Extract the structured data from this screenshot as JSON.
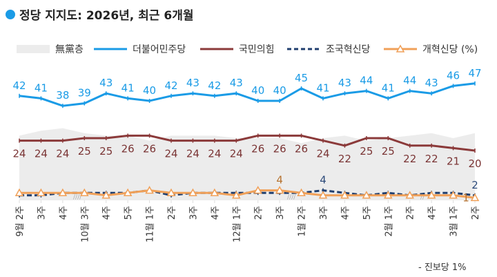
{
  "title": "정당 지지도: 2026년, 최근 6개월",
  "footnote": "- 진보당 1%",
  "chart_data": {
    "type": "line",
    "title": "정당 지지도: 2026년, 최근 6개월",
    "unit": "%",
    "categories": [
      "9월 2주",
      "3주",
      "4주",
      "10월 3주",
      "4주",
      "5주",
      "11월 1주",
      "2주",
      "3주",
      "4주",
      "12월 1주",
      "2주",
      "3주",
      "1월 2주",
      "3주",
      "4주",
      "5주",
      "2월 1주",
      "2주",
      "4주",
      "3월 1주",
      "2주"
    ],
    "ylim": [
      0,
      55
    ],
    "grid": false,
    "legend_position": "top",
    "series": [
      {
        "name": "無黨층",
        "style": "area",
        "color": "#ececec",
        "values": [
          26,
          28,
          29,
          27,
          26,
          26,
          24,
          26,
          26,
          26,
          25,
          25,
          25,
          23,
          25,
          26,
          24,
          25,
          26,
          27,
          25,
          27
        ],
        "labels": []
      },
      {
        "name": "더불어민주당",
        "style": "solid",
        "color": "#1a9be6",
        "values": [
          42,
          41,
          38,
          39,
          43,
          41,
          40,
          42,
          43,
          42,
          43,
          40,
          40,
          45,
          41,
          43,
          44,
          41,
          44,
          43,
          46,
          47
        ],
        "labels": [
          "42",
          "41",
          "38",
          "39",
          "43",
          "41",
          "40",
          "42",
          "43",
          "42",
          "43",
          "40",
          "40",
          "45",
          "41",
          "43",
          "44",
          "41",
          "44",
          "43",
          "46",
          "47"
        ]
      },
      {
        "name": "국민의힘",
        "style": "solid",
        "color": "#8b3a3a",
        "values": [
          24,
          24,
          24,
          25,
          25,
          26,
          26,
          24,
          24,
          24,
          24,
          26,
          26,
          26,
          24,
          22,
          25,
          25,
          22,
          22,
          21,
          20
        ],
        "labels": [
          "24",
          "24",
          "24",
          "25",
          "25",
          "26",
          "26",
          "24",
          "24",
          "24",
          "24",
          "26",
          "26",
          "26",
          "24",
          "22",
          "25",
          "25",
          "22",
          "22",
          "21",
          "20"
        ]
      },
      {
        "name": "조국혁신당",
        "style": "dashed",
        "color": "#1f3e6e",
        "values": [
          2,
          2,
          3,
          3,
          3,
          3,
          4,
          2,
          3,
          3,
          3,
          3,
          3,
          3,
          4,
          3,
          2,
          3,
          2,
          3,
          3,
          2
        ],
        "labels": [
          "",
          "",
          "",
          "",
          "",
          "",
          "",
          "",
          "",
          "",
          "",
          "",
          "",
          "",
          "4",
          "",
          "",
          "",
          "",
          "",
          "",
          "2"
        ]
      },
      {
        "name": "개혁신당 (%)",
        "style": "triangle",
        "color": "#f0a058",
        "values": [
          3,
          3,
          3,
          3,
          2,
          3,
          4,
          3,
          3,
          3,
          2,
          4,
          4,
          3,
          2,
          2,
          2,
          2,
          2,
          2,
          2,
          1
        ],
        "labels": [
          "",
          "",
          "",
          "",
          "",
          "",
          "",
          "",
          "",
          "",
          "",
          "",
          "4",
          "",
          "",
          "",
          "",
          "",
          "",
          "",
          "",
          "1"
        ]
      }
    ]
  }
}
